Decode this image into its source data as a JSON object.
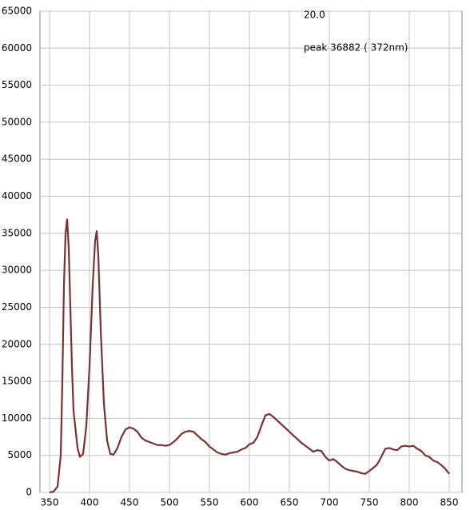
{
  "chart_data": {
    "type": "line",
    "annotations": [
      "20.0",
      "peak 36882 ( 372nm)"
    ],
    "x": [
      350,
      355,
      360,
      364,
      366,
      368,
      370,
      372,
      374,
      376,
      378,
      380,
      385,
      388,
      392,
      396,
      400,
      404,
      407,
      409,
      411,
      414,
      418,
      422,
      426,
      430,
      435,
      440,
      445,
      450,
      455,
      460,
      465,
      470,
      475,
      480,
      485,
      490,
      495,
      500,
      505,
      510,
      515,
      520,
      525,
      530,
      535,
      540,
      545,
      550,
      555,
      560,
      565,
      570,
      575,
      580,
      585,
      590,
      595,
      600,
      605,
      610,
      615,
      620,
      625,
      630,
      635,
      640,
      645,
      650,
      655,
      660,
      665,
      670,
      675,
      680,
      685,
      690,
      695,
      700,
      705,
      710,
      715,
      720,
      725,
      730,
      735,
      740,
      745,
      750,
      755,
      760,
      765,
      770,
      775,
      780,
      785,
      790,
      795,
      800,
      805,
      810,
      815,
      820,
      825,
      830,
      835,
      840,
      845,
      850
    ],
    "values": [
      0,
      100,
      800,
      5000,
      15000,
      28000,
      35000,
      36882,
      33000,
      25000,
      17000,
      11000,
      6000,
      4800,
      5200,
      9000,
      17000,
      28000,
      34000,
      35300,
      32000,
      22000,
      12000,
      7000,
      5200,
      5100,
      6000,
      7500,
      8500,
      8800,
      8600,
      8200,
      7400,
      7000,
      6800,
      6600,
      6400,
      6400,
      6300,
      6400,
      6800,
      7300,
      7900,
      8200,
      8300,
      8200,
      7700,
      7200,
      6800,
      6200,
      5800,
      5400,
      5200,
      5100,
      5300,
      5400,
      5500,
      5800,
      6000,
      6500,
      6700,
      7500,
      9000,
      10400,
      10600,
      10200,
      9700,
      9200,
      8700,
      8200,
      7700,
      7200,
      6700,
      6300,
      5900,
      5500,
      5700,
      5600,
      4800,
      4300,
      4500,
      4100,
      3600,
      3200,
      3000,
      2900,
      2800,
      2600,
      2500,
      2900,
      3300,
      3800,
      4800,
      5900,
      6000,
      5800,
      5700,
      6200,
      6300,
      6200,
      6300,
      5900,
      5600,
      5000,
      4800,
      4300,
      4100,
      3700,
      3200,
      2500
    ],
    "color": "#7a3232",
    "xlim": [
      338,
      866
    ],
    "xticks": [
      350,
      400,
      450,
      500,
      550,
      600,
      650,
      700,
      750,
      800,
      850
    ],
    "ylim": [
      0,
      65000
    ],
    "yticks": [
      0,
      5000,
      10000,
      15000,
      20000,
      25000,
      30000,
      35000,
      40000,
      45000,
      50000,
      55000,
      60000,
      65000
    ],
    "grid": true
  }
}
